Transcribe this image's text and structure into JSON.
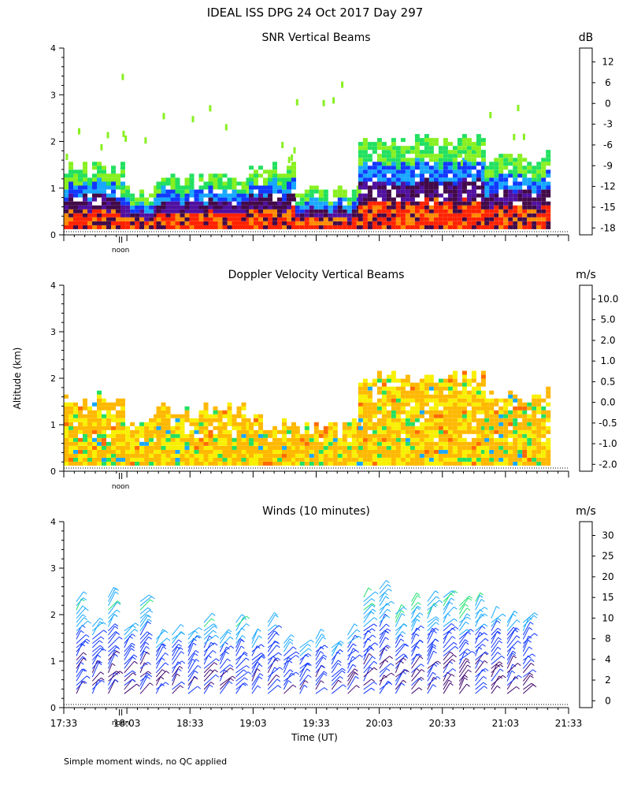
{
  "title": "IDEAL ISS DPG  24 Oct 2017 Day 297",
  "footnote": "Simple moment winds, no QC applied",
  "shared_ylabel": "Altitude (km)",
  "noon_label": "noon",
  "chart_data": [
    {
      "type": "heatmap",
      "title": "SNR Vertical Beams",
      "units": "dB",
      "ylabel": "Altitude (km)",
      "ylim": [
        0,
        4
      ],
      "yticks": [
        "0",
        "1",
        "2",
        "3",
        "4"
      ],
      "time_range_min": [
        0,
        240
      ],
      "colorbar_labels": [
        "12",
        "6",
        "0",
        "-3",
        "-6",
        "-9",
        "-12",
        "-15",
        "-18"
      ],
      "colorbar_colors": [
        "#ffb800",
        "#ff8a00",
        "#ff2200",
        "#420a48",
        "#5010a0",
        "#1238ff",
        "#18a8ff",
        "#22e060",
        "#88f020"
      ],
      "segments": [
        {
          "start": 0,
          "end": 27,
          "top_km": 1.4,
          "noise_top_km": 2.4
        },
        {
          "start": 27,
          "end": 44,
          "top_km": 0.9,
          "noise_top_km": 3.8
        },
        {
          "start": 44,
          "end": 88,
          "top_km": 1.2,
          "noise_top_km": 2.8
        },
        {
          "start": 88,
          "end": 110,
          "top_km": 1.4,
          "noise_top_km": 2.0
        },
        {
          "start": 110,
          "end": 140,
          "top_km": 0.9,
          "noise_top_km": 3.7
        },
        {
          "start": 140,
          "end": 200,
          "top_km": 2.0,
          "noise_top_km": 2.2
        },
        {
          "start": 200,
          "end": 230,
          "top_km": 1.6,
          "noise_top_km": 3.1
        }
      ]
    },
    {
      "type": "heatmap",
      "title": "Doppler Velocity Vertical Beams",
      "units": "m/s",
      "ylim": [
        0,
        4
      ],
      "yticks": [
        "0",
        "1",
        "2",
        "3",
        "4"
      ],
      "time_range_min": [
        0,
        240
      ],
      "colorbar_labels": [
        "10.0",
        "5.0",
        "2.0",
        "1.0",
        "0.5",
        "0.0",
        "-0.5",
        "-1.0",
        "-2.0"
      ],
      "colorbar_colors": [
        "#3a0a3a",
        "#5010a0",
        "#1238ff",
        "#18a8ff",
        "#22e060",
        "#f8f000",
        "#ffb800",
        "#ff6a00",
        "#ff1a00"
      ],
      "segments": [
        {
          "start": 0,
          "end": 27,
          "top_km": 1.5
        },
        {
          "start": 27,
          "end": 44,
          "top_km": 1.0
        },
        {
          "start": 44,
          "end": 88,
          "top_km": 1.3
        },
        {
          "start": 88,
          "end": 110,
          "top_km": 1.0
        },
        {
          "start": 110,
          "end": 140,
          "top_km": 0.9
        },
        {
          "start": 140,
          "end": 200,
          "top_km": 2.0
        },
        {
          "start": 200,
          "end": 230,
          "top_km": 1.6
        }
      ]
    },
    {
      "type": "scatter",
      "title": "Winds (10 minutes)",
      "units": "m/s",
      "ylim": [
        0,
        4
      ],
      "yticks": [
        "0",
        "1",
        "2",
        "3",
        "4"
      ],
      "xlabel": "Time (UT)",
      "xticks": [
        "17:33",
        "18:03",
        "18:33",
        "19:03",
        "19:33",
        "20:03",
        "20:33",
        "21:03",
        "21:33"
      ],
      "colorbar_labels": [
        "30",
        "25",
        "20",
        "15",
        "10",
        "8",
        "4",
        "2",
        "0"
      ],
      "colorbar_colors": [
        "#ff0000",
        "#ff6000",
        "#ffb000",
        "#88f020",
        "#22e070",
        "#18a8ff",
        "#1238ff",
        "#420a70",
        "#000000"
      ],
      "profiles_top_km": [
        2.3,
        1.8,
        2.4,
        1.7,
        2.3,
        1.5,
        1.6,
        1.6,
        1.9,
        1.5,
        1.9,
        1.5,
        1.9,
        1.4,
        1.3,
        1.5,
        1.3,
        1.6,
        2.4,
        2.6,
        2.1,
        2.3,
        2.3,
        2.4,
        2.2,
        2.3,
        2.0,
        1.9,
        1.9
      ],
      "profiles_speed": [
        10,
        6,
        11,
        7,
        12,
        5,
        6,
        8,
        10,
        7,
        10,
        6,
        9,
        5,
        4,
        6,
        5,
        7,
        12,
        12,
        10,
        11,
        11,
        12,
        10,
        11,
        8,
        6,
        7
      ]
    }
  ]
}
